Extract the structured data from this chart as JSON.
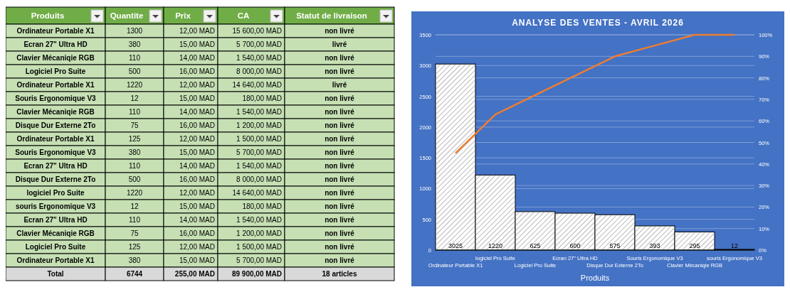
{
  "chart_data": [
    {
      "type": "other",
      "categories": [
        "Produits",
        "Quantite",
        "Prix",
        "CA",
        "Statut de livraison"
      ],
      "cell_labels": [
        [
          "Ordinateur Portable X1",
          "1300",
          "12,00 MAD",
          "15 600,00 MAD",
          "non livré"
        ],
        [
          "Ecran 27\" Ultra HD",
          "380",
          "15,00 MAD",
          "5 700,00 MAD",
          "livré"
        ],
        [
          "Clavier Mécaniqie RGB",
          "110",
          "14,00 MAD",
          "1 540,00 MAD",
          "non livré"
        ],
        [
          "Logiciel Pro Suite",
          "500",
          "16,00 MAD",
          "8 000,00 MAD",
          "non livré"
        ],
        [
          "Ordinateur Portable X1",
          "1220",
          "12,00 MAD",
          "14 640,00 MAD",
          "livré"
        ],
        [
          "Souris Ergonomique V3",
          "12",
          "15,00 MAD",
          "180,00 MAD",
          "non livré"
        ],
        [
          "Clavier Mécaniqie RGB",
          "110",
          "14,00 MAD",
          "1 540,00 MAD",
          "non livré"
        ],
        [
          "Disque Dur Externe 2To",
          "75",
          "16,00 MAD",
          "1 200,00 MAD",
          "non livré"
        ],
        [
          "Ordinateur Portable X1",
          "125",
          "12,00 MAD",
          "1 500,00 MAD",
          "non livré"
        ],
        [
          "Souris Ergonomique V3",
          "380",
          "15,00 MAD",
          "5 700,00 MAD",
          "non livré"
        ],
        [
          "Ecran 27\" Ultra HD",
          "110",
          "14,00 MAD",
          "1 540,00 MAD",
          "non livré"
        ],
        [
          "Disque Dur Externe 2To",
          "500",
          "16,00 MAD",
          "8 000,00 MAD",
          "non livré"
        ],
        [
          "logiciel Pro Suite",
          "1220",
          "12,00 MAD",
          "14 640,00 MAD",
          "non livré"
        ],
        [
          "souris Ergonomique V3",
          "12",
          "15,00 MAD",
          "180,00 MAD",
          "non livré"
        ],
        [
          "Ecran 27\" Ultra HD",
          "110",
          "14,00 MAD",
          "1 540,00 MAD",
          "non livré"
        ],
        [
          "Clavier Mécaniqie RGB",
          "75",
          "16,00 MAD",
          "1 200,00 MAD",
          "non livré"
        ],
        [
          "Logiciel Pro Suite",
          "125",
          "12,00 MAD",
          "1 500,00 MAD",
          "non livré"
        ],
        [
          "Ordinateur Portable X1",
          "380",
          "15,00 MAD",
          "5 700,00 MAD",
          "non livré"
        ],
        [
          "Total",
          "6744",
          "255,00 MAD",
          "89 900,00 MAD",
          "18 articles"
        ]
      ]
    },
    {
      "type": "bar",
      "title": "ANALYSE DES VENTES - AVRIL 2026",
      "xlabel": "Produits",
      "categories": [
        "Ordinateur Portable X1",
        "logiciel Pro Suite",
        "Logiciel Pro Suite",
        "Ecran 27\" Ultra HD",
        "Disque Dur Externe 2To",
        "Souris Ergonomique V3",
        "Clavier Mécaniqie RGB",
        "souris Ergonomique V3"
      ],
      "series": [
        {
          "type": "bar",
          "color": "#ffffff",
          "values": [
            3025,
            1220,
            625,
            600,
            575,
            393,
            295,
            12
          ],
          "value_labels": [
            "3025",
            "1220",
            "625",
            "600",
            "575",
            "393",
            "295",
            "12"
          ]
        },
        {
          "type": "line",
          "axis": "y2",
          "color": "#ed7d31",
          "values": [
            45,
            63,
            72,
            81,
            90,
            95,
            100,
            100
          ]
        }
      ],
      "ylim": [
        0,
        3500
      ],
      "yticks": [
        0,
        500,
        1000,
        1500,
        2000,
        2500,
        3000,
        3500
      ],
      "y2lim": [
        0,
        100
      ],
      "y2ticks": [
        {
          "value": 0,
          "label": "0%"
        },
        {
          "value": 10,
          "label": "10%"
        },
        {
          "value": 20,
          "label": "20%"
        },
        {
          "value": 30,
          "label": "30%"
        },
        {
          "value": 40,
          "label": "40%"
        },
        {
          "value": 50,
          "label": "50%"
        },
        {
          "value": 60,
          "label": "60%"
        },
        {
          "value": 70,
          "label": "70%"
        },
        {
          "value": 80,
          "label": "80%"
        },
        {
          "value": 90,
          "label": "90%"
        },
        {
          "value": 100,
          "label": "100%"
        }
      ],
      "grid": true,
      "marker": "none",
      "line_style": "solid"
    }
  ]
}
